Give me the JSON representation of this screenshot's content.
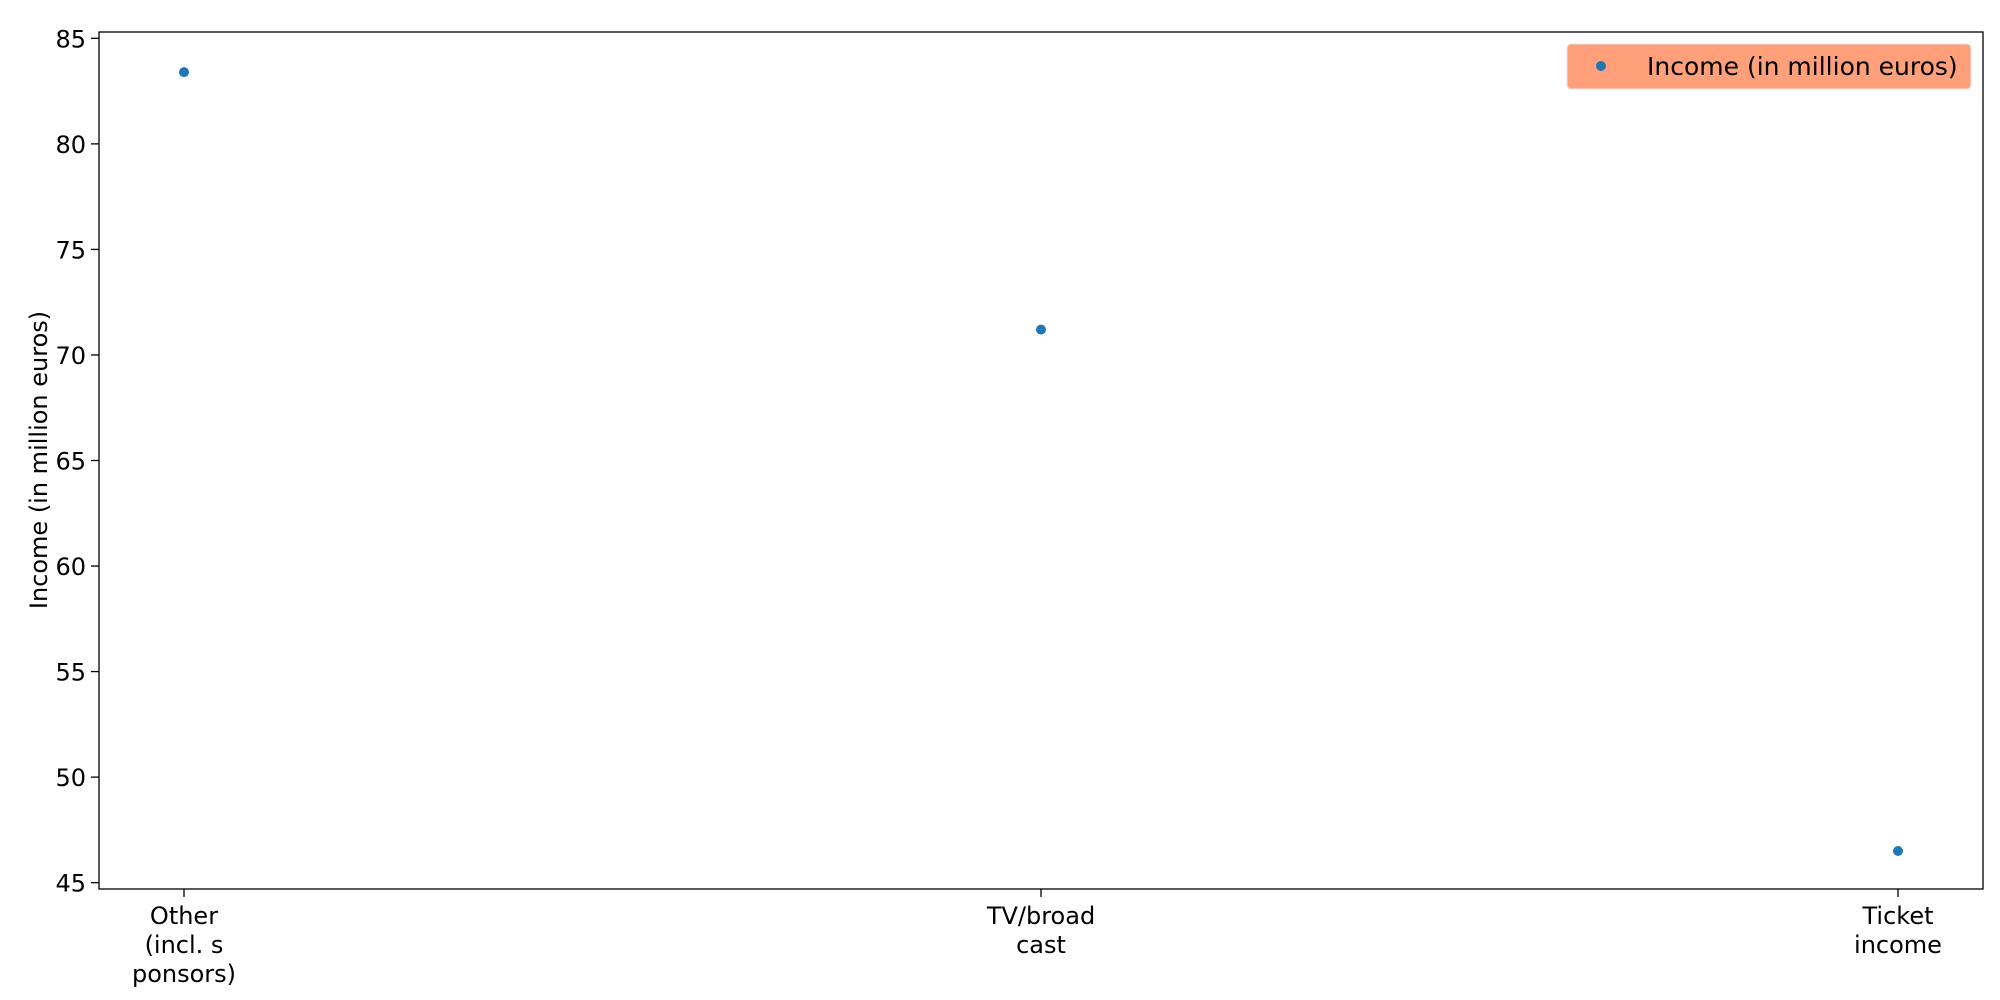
{
  "chart_data": {
    "type": "scatter",
    "title": "",
    "xlabel": "",
    "ylabel": "Income (in million euros)",
    "categories": [
      [
        "Other",
        "(incl. s",
        "ponsors)"
      ],
      [
        "TV/broad",
        "cast"
      ],
      [
        "Ticket",
        "income"
      ]
    ],
    "series": [
      {
        "name": "Income (in million euros)",
        "values": [
          83.4,
          71.2,
          46.5
        ],
        "color": "#1f77b4"
      }
    ],
    "ylim": [
      44.7,
      85.3
    ],
    "yticks": [
      45,
      50,
      55,
      60,
      65,
      70,
      75,
      80,
      85
    ],
    "grid": false,
    "legend": {
      "placement": "top-right",
      "background": "#ffa07a"
    }
  }
}
